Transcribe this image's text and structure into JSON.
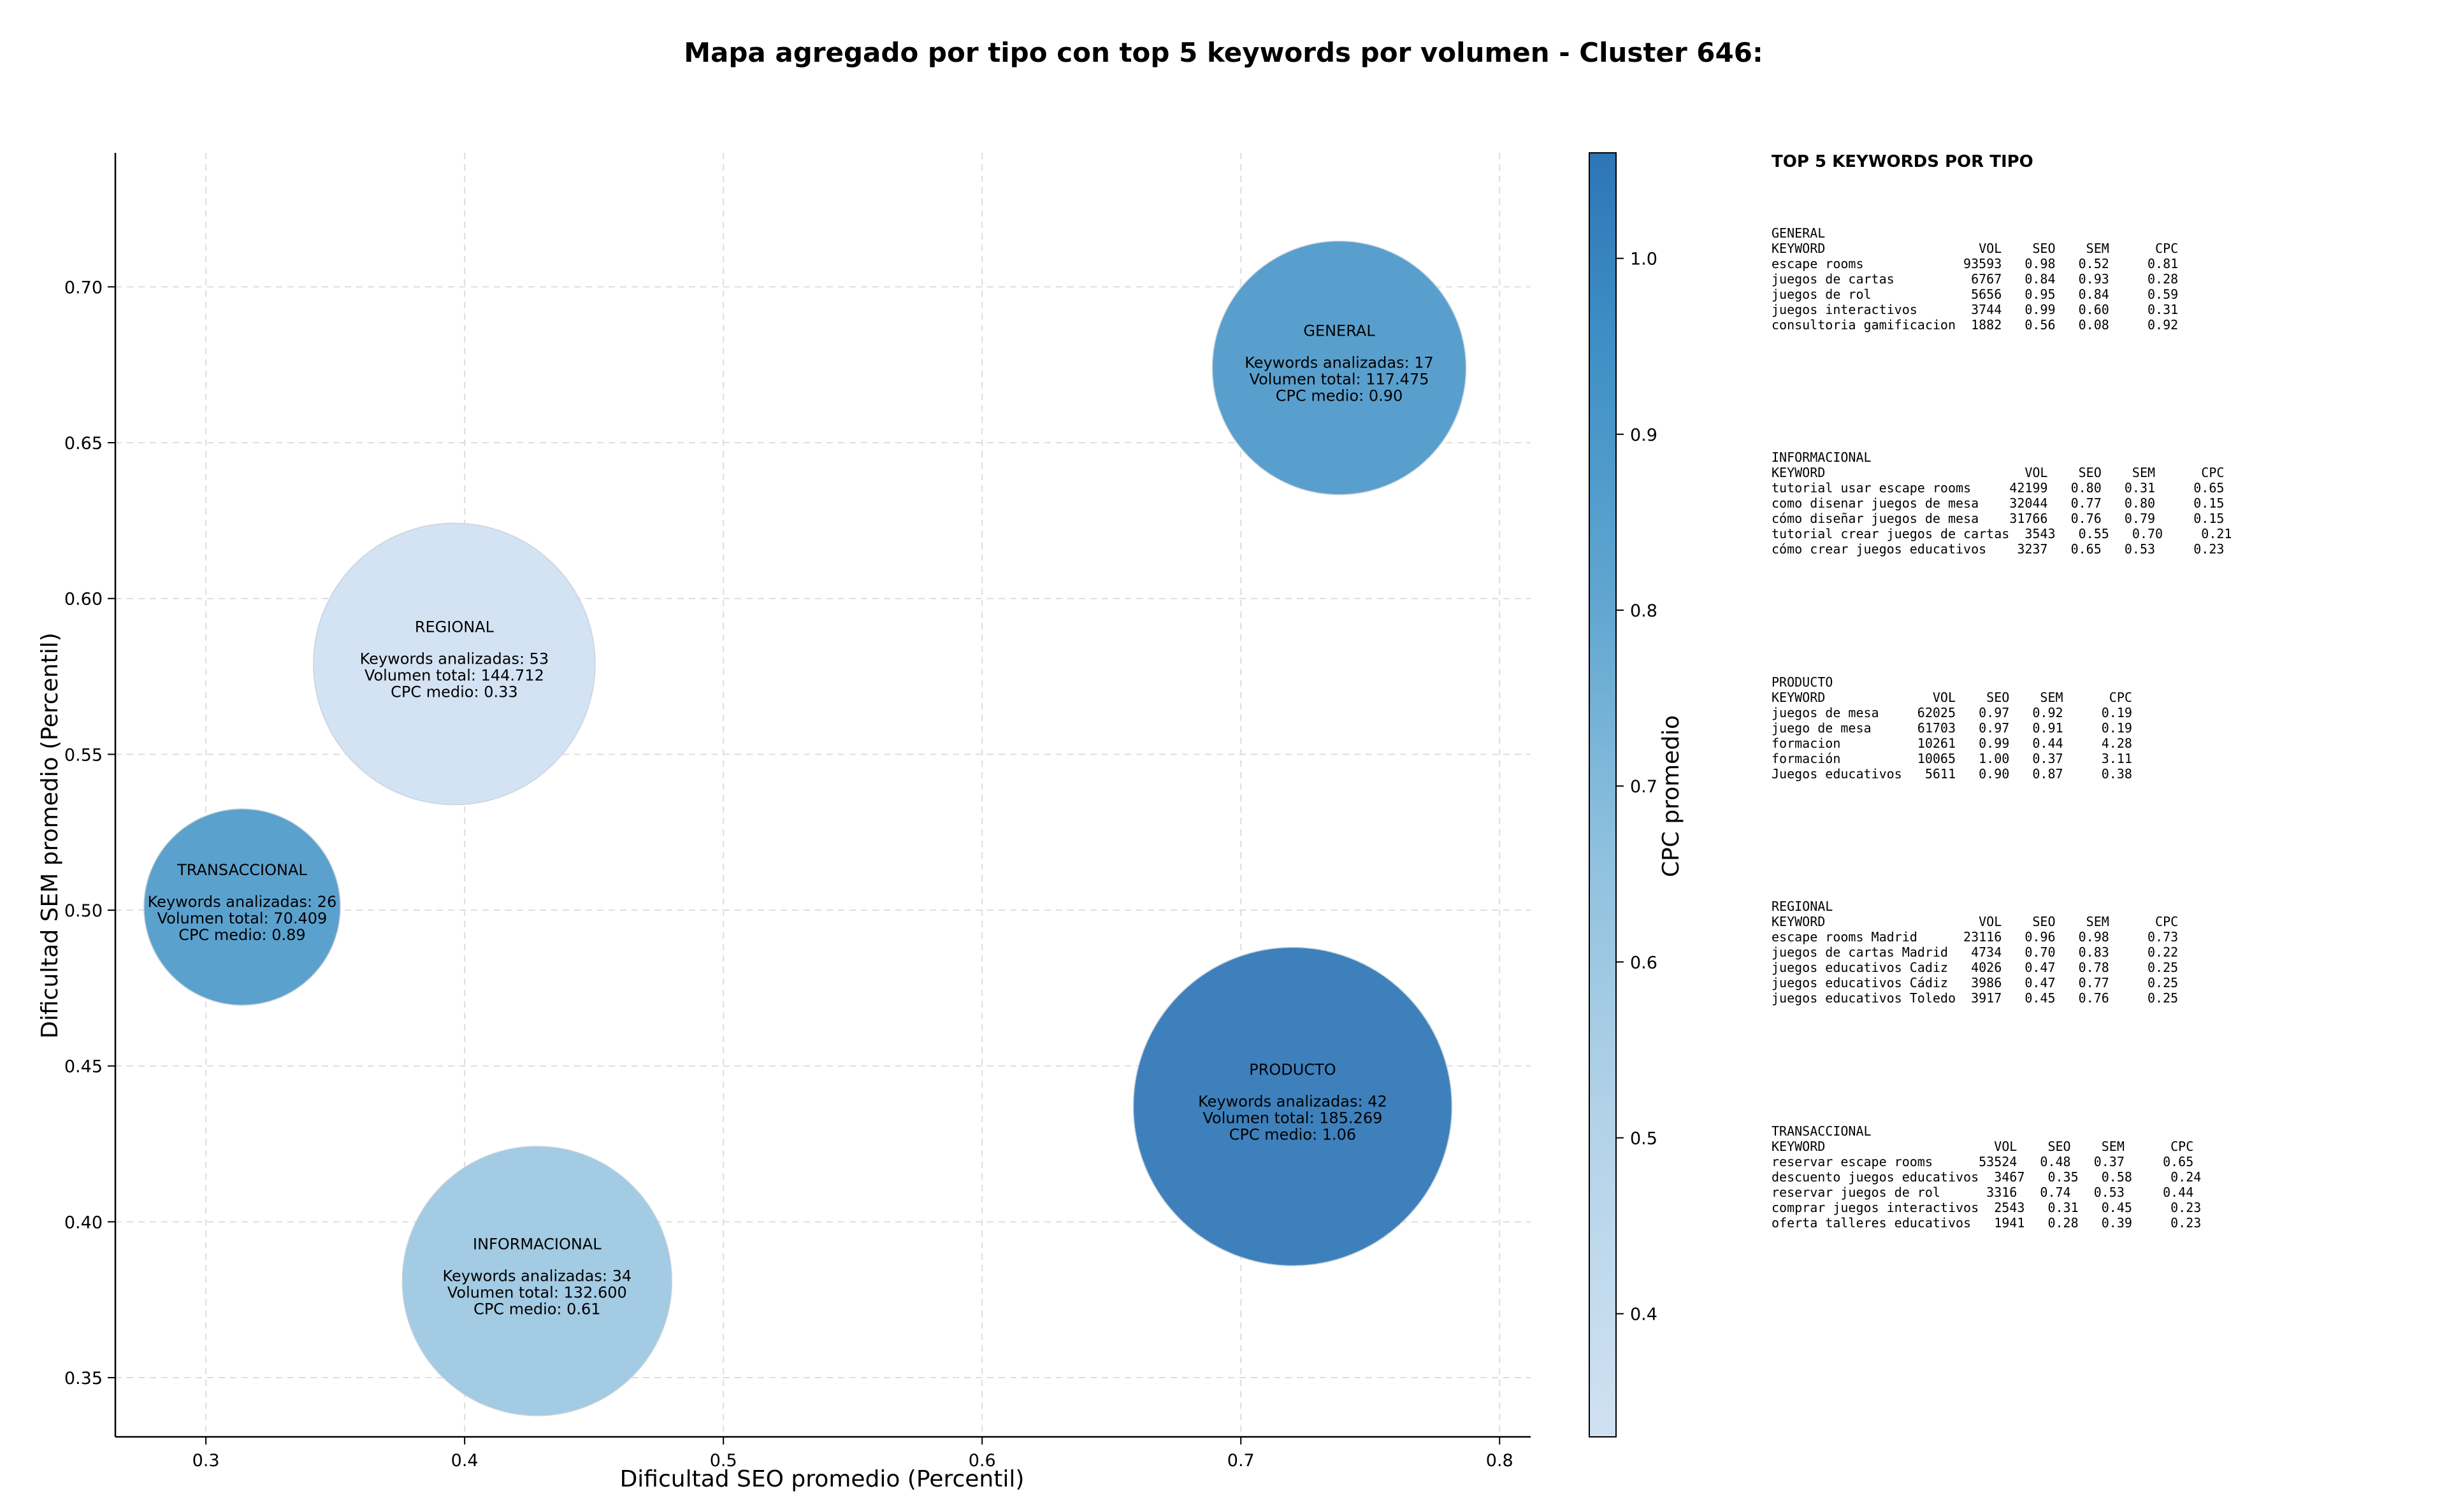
{
  "chart_data": {
    "type": "scatter",
    "title": "Mapa agregado por tipo con top 5 keywords por volumen - Cluster 646:",
    "xlabel": "Dificultad SEO promedio (Percentil)",
    "ylabel": "Dificultad SEM promedio (Percentil)",
    "xlim": [
      0.265,
      0.812
    ],
    "ylim": [
      0.331,
      0.743
    ],
    "xticks": [
      "0.3",
      "0.4",
      "0.5",
      "0.6",
      "0.7",
      "0.8"
    ],
    "yticks": [
      "0.35",
      "0.40",
      "0.45",
      "0.50",
      "0.55",
      "0.60",
      "0.65",
      "0.70"
    ],
    "grid": true,
    "colorbar": {
      "label": "CPC promedio",
      "range": [
        0.33,
        1.06
      ],
      "ticks": [
        "0.4",
        "0.5",
        "0.6",
        "0.7",
        "0.8",
        "0.9",
        "1.0"
      ],
      "colormap": "Blues"
    },
    "points": [
      {
        "name": "GENERAL",
        "seo": 0.738,
        "sem": 0.674,
        "keywords": 17,
        "volumen": 117475,
        "lines": [
          "Keywords analizadas: 17",
          "Volumen total: 117.475",
          "CPC medio: 0.90"
        ],
        "cpc": 0.9
      },
      {
        "name": "REGIONAL",
        "seo": 0.396,
        "sem": 0.579,
        "keywords": 53,
        "volumen": 144712,
        "lines": [
          "Keywords analizadas: 53",
          "Volumen total: 144.712",
          "CPC medio: 0.33"
        ],
        "cpc": 0.33
      },
      {
        "name": "TRANSACCIONAL",
        "seo": 0.314,
        "sem": 0.501,
        "keywords": 26,
        "volumen": 70409,
        "lines": [
          "Keywords analizadas: 26",
          "Volumen total: 70.409",
          "CPC medio: 0.89"
        ],
        "cpc": 0.89
      },
      {
        "name": "PRODUCTO",
        "seo": 0.72,
        "sem": 0.437,
        "keywords": 42,
        "volumen": 185269,
        "lines": [
          "Keywords analizadas: 42",
          "Volumen total: 185.269",
          "CPC medio: 1.06"
        ],
        "cpc": 1.06
      },
      {
        "name": "INFORMACIONAL",
        "seo": 0.428,
        "sem": 0.381,
        "keywords": 34,
        "volumen": 132600,
        "lines": [
          "Keywords analizadas: 34",
          "Volumen total: 132.600",
          "CPC medio: 0.61"
        ],
        "cpc": 0.61
      }
    ],
    "side_panel": {
      "title": "TOP 5 KEYWORDS POR TIPO",
      "sections": [
        {
          "type": "GENERAL",
          "lines": [
            "KEYWORD                    VOL    SEO    SEM      CPC",
            "escape rooms             93593   0.98   0.52     0.81",
            "juegos de cartas          6767   0.84   0.93     0.28",
            "juegos de rol             5656   0.95   0.84     0.59",
            "juegos interactivos       3744   0.99   0.60     0.31",
            "consultoria gamificacion  1882   0.56   0.08     0.92"
          ]
        },
        {
          "type": "INFORMACIONAL",
          "lines": [
            "KEYWORD                          VOL    SEO    SEM      CPC",
            "tutorial usar escape rooms     42199   0.80   0.31     0.65",
            "como disenar juegos de mesa    32044   0.77   0.80     0.15",
            "cómo diseñar juegos de mesa    31766   0.76   0.79     0.15",
            "tutorial crear juegos de cartas  3543   0.55   0.70     0.21",
            "cómo crear juegos educativos    3237   0.65   0.53     0.23"
          ]
        },
        {
          "type": "PRODUCTO",
          "lines": [
            "KEYWORD              VOL    SEO    SEM      CPC",
            "juegos de mesa     62025   0.97   0.92     0.19",
            "juego de mesa      61703   0.97   0.91     0.19",
            "formacion          10261   0.99   0.44     4.28",
            "formación          10065   1.00   0.37     3.11",
            "Juegos educativos   5611   0.90   0.87     0.38"
          ]
        },
        {
          "type": "REGIONAL",
          "lines": [
            "KEYWORD                    VOL    SEO    SEM      CPC",
            "escape rooms Madrid      23116   0.96   0.98     0.73",
            "juegos de cartas Madrid   4734   0.70   0.83     0.22",
            "juegos educativos Cadiz   4026   0.47   0.78     0.25",
            "juegos educativos Cádiz   3986   0.47   0.77     0.25",
            "juegos educativos Toledo  3917   0.45   0.76     0.25"
          ]
        },
        {
          "type": "TRANSACCIONAL",
          "lines": [
            "KEYWORD                      VOL    SEO    SEM      CPC",
            "reservar escape rooms      53524   0.48   0.37     0.65",
            "descuento juegos educativos  3467   0.35   0.58     0.24",
            "reservar juegos de rol      3316   0.74   0.53     0.44",
            "comprar juegos interactivos  2543   0.31   0.45     0.23",
            "oferta talleres educativos   1941   0.28   0.39     0.23"
          ]
        }
      ]
    }
  }
}
